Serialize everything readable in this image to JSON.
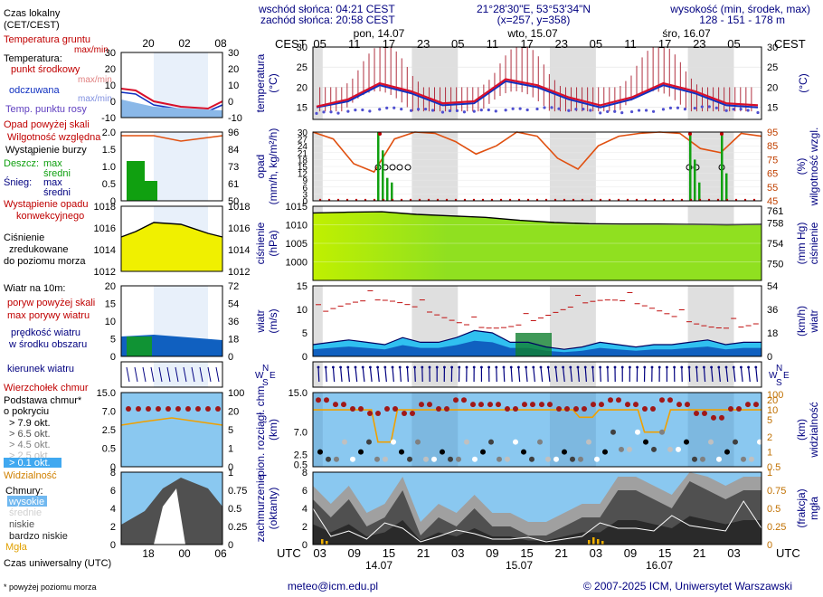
{
  "header": {
    "local_time_label": "Czas lokalny",
    "local_time_zone": "(CET/CEST)",
    "sunrise": "wschód słońca: 04:21 CEST",
    "sunset": "zachód słońca: 20:58 CEST",
    "coords": "21°28'30\"E, 53°53'34\"N",
    "grid": "(x=257, y=358)",
    "elevation_label": "wysokość (min, środek, max)",
    "elevation_values": "128 - 151 - 178 m"
  },
  "legend": {
    "soil_temp": "Temperatura gruntu",
    "temp_maxmin": "max/min",
    "temp_label": "Temperatura:",
    "temp_mid": "punkt środkowy",
    "temp_maxmin2": "max/min",
    "temp_felt": "odczuwana",
    "temp_maxmin3": "max/min",
    "dew": "Temp. punktu rosy",
    "precip_above": "Opad powyżej skali",
    "humidity": "Wilgotność względna",
    "storm": "Wystąpienie burzy",
    "rain_label": "Deszcz:",
    "rain_max": "max",
    "rain_mid": "średni",
    "snow_label": "Śnieg:",
    "snow_max": "max",
    "snow_mid": "średni",
    "precip_occ": "Wystąpienie opadu",
    "precip_occ2": "konwekcyjnego",
    "pressure1": "Ciśnienie",
    "pressure2": "zredukowane",
    "pressure3": "do poziomu morza",
    "wind_title": "Wiatr na 10m:",
    "gust_above": "poryw powyżej skali",
    "gust_max": "max porywy wiatru",
    "wind_speed1": "prędkość wiatru",
    "wind_speed2": "w środku obszaru",
    "wind_dir": "kierunek wiatru",
    "cloud_top": "Wierzchołek chmur",
    "cloud_base1": "Podstawa chmur*",
    "cloud_base2": "o pokryciu",
    "okt1": "> 7.9 okt.",
    "okt2": "> 6.5 okt.",
    "okt3": "> 4.5 okt.",
    "okt4": "> 2.5 okt.",
    "okt5": "> 0.1 okt.",
    "visibility": "Widzialność",
    "clouds_title": "Chmury:",
    "cl_high": "wysokie",
    "cl_mid": "średnie",
    "cl_low": "niskie",
    "cl_vlow": "bardzo niskie",
    "fog": "Mgła",
    "utc_label": "Czas uniwersalny (UTC)",
    "footnote": "* powyżej poziomu morza"
  },
  "preview_axis": {
    "top_ticks": [
      "20",
      "02",
      "08"
    ],
    "bottom_ticks": [
      "18",
      "00",
      "06"
    ]
  },
  "axis_titles": {
    "cest": "CEST",
    "utc": "UTC",
    "temp_left": "temperatura",
    "temp_left_unit": "(°C)",
    "temp_right_unit": "(°C)",
    "precip_left": "opad",
    "precip_left_unit": "(mm/h, kg/m²/h)",
    "precip_right": "wilgotność wzgl.",
    "precip_right_unit": "(%)",
    "press_left": "ciśnienie",
    "press_left_unit": "(hPa)",
    "press_right": "ciśnienie",
    "press_right_unit": "(mm Hg)",
    "wind_left": "wiatr",
    "wind_left_unit": "(m/s)",
    "wind_right": "wiatr",
    "wind_right_unit": "(km/h)",
    "cloud_left": "pion. rozciągł. chm.",
    "cloud_left_unit": "(km)",
    "cloud_right": "widzialność",
    "cloud_right_unit": "(km)",
    "cov_left": "zachmurzenie",
    "cov_left_unit": "(oktanty)",
    "cov_right": "mgła",
    "cov_right_unit": "(frakcja)"
  },
  "days": [
    {
      "label": "pon, 14.07",
      "date": "14.07"
    },
    {
      "label": "wto, 15.07",
      "date": "15.07"
    },
    {
      "label": "śro, 16.07",
      "date": "16.07"
    }
  ],
  "cest_ticks": [
    "05",
    "11",
    "17",
    "23",
    "05",
    "11",
    "17",
    "23",
    "05",
    "11",
    "17",
    "23",
    "05"
  ],
  "utc_ticks": [
    "03",
    "09",
    "15",
    "21",
    "03",
    "09",
    "15",
    "21",
    "03",
    "09",
    "15",
    "21",
    "03"
  ],
  "footer": {
    "email": "meteo@icm.edu.pl",
    "copyright": "© 2007-2025 ICM, Uniwersytet Warszawski"
  },
  "colors": {
    "temp": "#d8102a",
    "felt": "#1030c0",
    "humidity": "#e05010",
    "pressure_fill": "#f0f000",
    "pressure_fill2": "#90e020",
    "wind_fill": "#1080d0",
    "wind_fill_light": "#30c0f0",
    "gust": "#c01010",
    "precip": "#10a010",
    "sky": "#8ac8f0",
    "night": "#dcdcdc",
    "cloud_top": "#a01010",
    "visibility": "#f0a000",
    "label_red": "#c00000",
    "label_blue": "#000080"
  },
  "chart_data": [
    {
      "type": "line",
      "name": "temperature",
      "x_hours_cest": [
        0,
        6,
        12,
        18,
        24,
        30,
        36,
        42,
        48,
        54,
        60,
        66,
        72
      ],
      "x_labels": [
        "05",
        "11",
        "17",
        "23",
        "05",
        "11",
        "17",
        "23",
        "05",
        "11",
        "17",
        "23",
        "05"
      ],
      "ylim": [
        12,
        30
      ],
      "yticks_left": [
        15,
        20,
        25,
        30
      ],
      "yticks_right": [
        15,
        20,
        25,
        30
      ],
      "series": [
        {
          "values": [
            15.2,
            17,
            21,
            19,
            16,
            16.5,
            22,
            20.5,
            17.5,
            15.5,
            17.5,
            21,
            19,
            16,
            15.5
          ]
        },
        {
          "values": [
            15,
            16.5,
            20.5,
            18.5,
            15.5,
            16,
            21.5,
            20,
            17,
            15,
            17,
            20.5,
            18.5,
            15.5,
            15
          ]
        },
        {
          "values": [
            13.5,
            14,
            14.5,
            14.2,
            13.8,
            14,
            14.3,
            14.6,
            14.2,
            13.6,
            13.9,
            14.5,
            14.8,
            14.2,
            13.7
          ]
        }
      ]
    },
    {
      "type": "line",
      "name": "precip_humidity",
      "ylim": [
        0,
        30
      ],
      "yticks_left": [
        0,
        3,
        6,
        9,
        12,
        15,
        18,
        21,
        24,
        27,
        30
      ],
      "yticks_right": [
        45,
        55,
        65,
        75,
        85,
        95
      ],
      "series": [
        {
          "values": [
            95,
            90,
            72,
            66,
            90,
            95,
            94,
            88,
            79,
            85,
            95,
            92,
            76,
            68,
            85,
            92,
            94,
            95,
            94,
            83,
            80,
            94,
            92
          ]
        }
      ]
    },
    {
      "type": "area",
      "name": "pressure",
      "ylim": [
        995,
        1015
      ],
      "yticks_left": [
        1000,
        1005,
        1010,
        1015
      ],
      "yticks_right": [
        750,
        754,
        758,
        761
      ],
      "series": [
        {
          "values": [
            1013.2,
            1013.4,
            1013.5,
            1012.8,
            1012.4,
            1012.0,
            1011.2,
            1010.6,
            1010.3,
            1010.2,
            1010.2,
            1010.1,
            1010.0,
            1010.1
          ]
        }
      ]
    },
    {
      "type": "area",
      "name": "wind",
      "ylim": [
        0,
        15
      ],
      "yticks_left": [
        0,
        5,
        10,
        15
      ],
      "yticks_right": [
        0,
        18,
        36,
        54
      ],
      "series": [
        {
          "values": [
            2.5,
            3,
            3.5,
            3,
            2.5,
            4,
            3,
            3,
            4,
            5.5,
            5,
            3,
            3,
            2,
            1.5,
            2,
            3,
            2.5,
            2,
            2.5,
            2.5,
            3,
            3.5,
            2.5,
            3,
            3
          ]
        }
      ]
    },
    {
      "type": "scatter",
      "name": "cloud_base_top",
      "ylim": [
        0,
        15
      ],
      "yticks_left": [
        0.5,
        2.5,
        7.0,
        15.0
      ],
      "yticks_right": [
        0.5,
        1,
        2,
        5,
        10,
        20,
        100
      ],
      "series": [
        {
          "values": [
            15,
            14,
            13,
            12,
            13,
            12,
            14,
            13,
            15,
            14,
            14,
            13,
            14,
            14,
            13,
            13,
            14,
            15,
            14,
            13,
            15,
            14,
            12,
            11,
            13,
            14
          ]
        }
      ]
    },
    {
      "type": "area",
      "name": "cloud_cover",
      "ylim": [
        0,
        8
      ],
      "yticks_left": [
        0,
        2,
        4,
        6,
        8
      ],
      "yticks_right": [
        0,
        0.25,
        0.5,
        0.75,
        1
      ],
      "series": [
        {
          "values": [
            5,
            3,
            5,
            2,
            3,
            6,
            1,
            3,
            2,
            4,
            2,
            2,
            1,
            1,
            2,
            3,
            3,
            6,
            6,
            5,
            4,
            7,
            6,
            5,
            6,
            6
          ]
        }
      ]
    }
  ]
}
